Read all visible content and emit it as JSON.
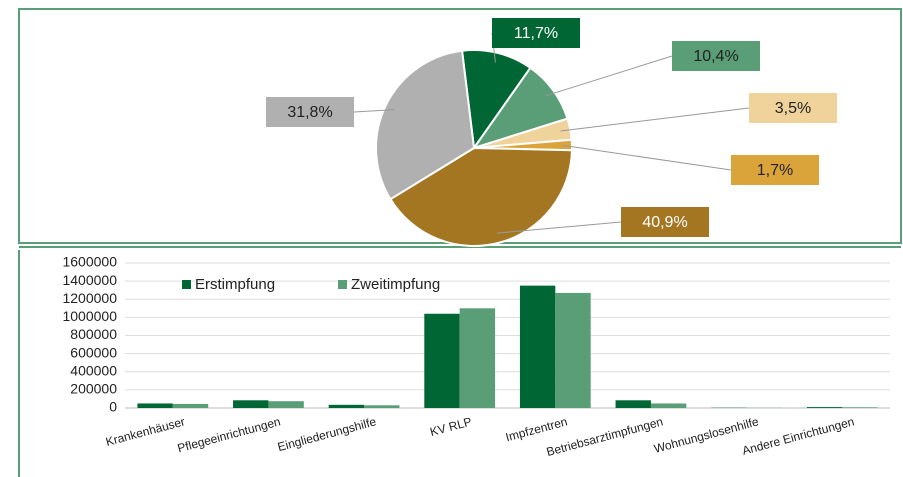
{
  "chart_data": [
    {
      "type": "pie",
      "values": [
        11.7,
        10.4,
        3.5,
        1.7,
        40.9,
        31.8
      ],
      "value_labels": [
        "11,7%",
        "10,4%",
        "3,5%",
        "1,7%",
        "40,9%",
        "31,8%"
      ],
      "colors": [
        "#006633",
        "#5a9e78",
        "#f0d29b",
        "#dba43a",
        "#a57622",
        "#b0b0b0"
      ]
    },
    {
      "type": "bar",
      "categories": [
        "Krankenhäuser",
        "Pflegeeinrichtungen",
        "Eingliederungshilfe",
        "KV RLP",
        "Impfzentren",
        "Betriebsarztimpfungen",
        "Wohnungslosenhilfe",
        "Andere Einrichtungen"
      ],
      "series": [
        {
          "name": "Erstimpfung",
          "color": "#006633",
          "values": [
            50000,
            85000,
            35000,
            1040000,
            1350000,
            85000,
            3000,
            10000
          ]
        },
        {
          "name": "Zweitimpfung",
          "color": "#5a9e78",
          "values": [
            45000,
            75000,
            30000,
            1100000,
            1270000,
            50000,
            2000,
            8000
          ]
        }
      ],
      "ylim": [
        0,
        1600000
      ],
      "yticks": [
        0,
        200000,
        400000,
        600000,
        800000,
        1000000,
        1200000,
        1400000,
        1600000
      ],
      "grid": true,
      "legend": "top-left"
    }
  ]
}
